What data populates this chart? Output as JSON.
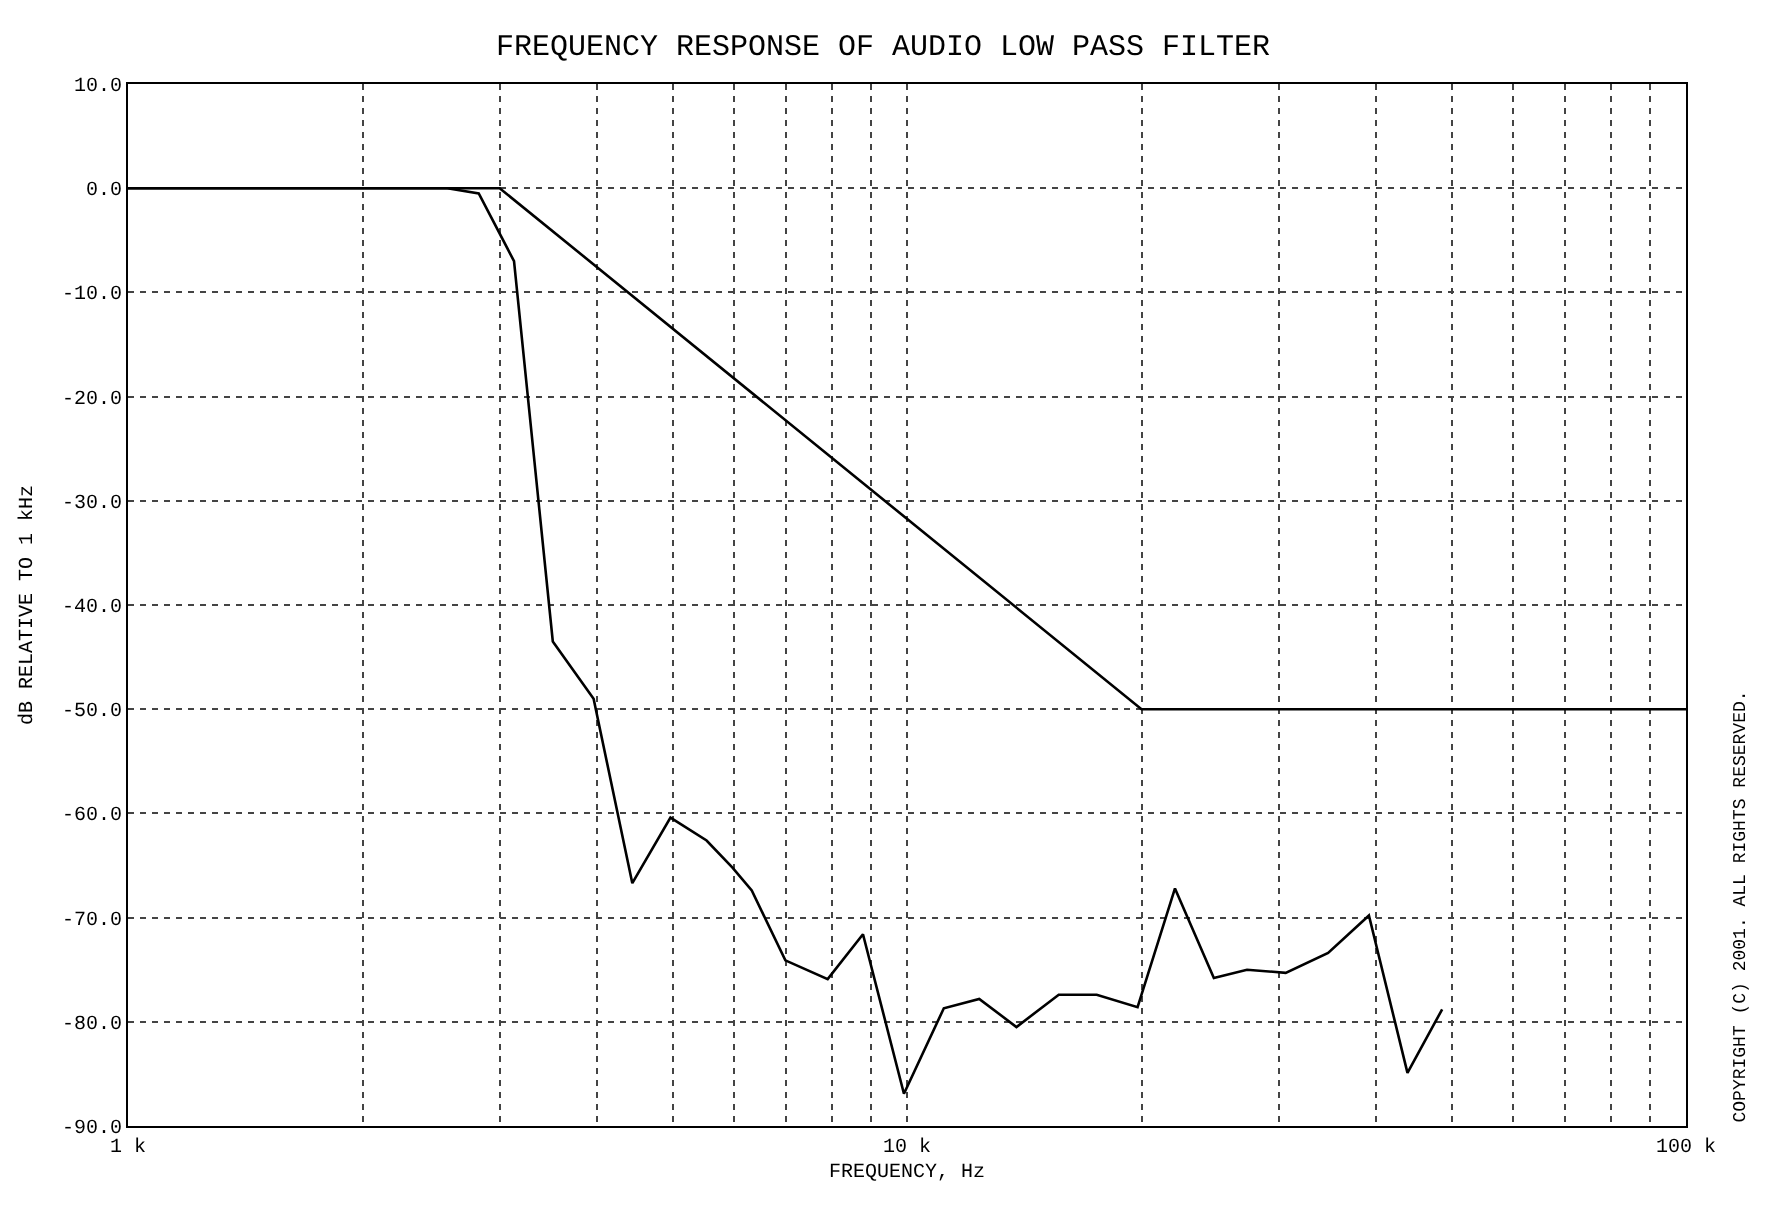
{
  "chart_data": {
    "type": "line",
    "title": "FREQUENCY RESPONSE OF AUDIO LOW PASS FILTER",
    "xlabel": "FREQUENCY, Hz",
    "ylabel": "dB RELATIVE TO 1 kHz",
    "annotations": [
      "COPYRIGHT (C) 2001. ALL RIGHTS RESERVED."
    ],
    "log": "x",
    "grid": true,
    "line_style": "solid",
    "marker": "none",
    "xlim": [
      1000,
      100000
    ],
    "xticks": [
      {
        "value": 1000,
        "label": "1 k"
      },
      {
        "value": 2000,
        "label": null
      },
      {
        "value": 3000,
        "label": null
      },
      {
        "value": 4000,
        "label": null
      },
      {
        "value": 5000,
        "label": null
      },
      {
        "value": 6000,
        "label": null
      },
      {
        "value": 7000,
        "label": null
      },
      {
        "value": 8000,
        "label": null
      },
      {
        "value": 9000,
        "label": null
      },
      {
        "value": 10000,
        "label": "10 k"
      },
      {
        "value": 20000,
        "label": null
      },
      {
        "value": 30000,
        "label": null
      },
      {
        "value": 40000,
        "label": null
      },
      {
        "value": 50000,
        "label": null
      },
      {
        "value": 60000,
        "label": null
      },
      {
        "value": 70000,
        "label": null
      },
      {
        "value": 80000,
        "label": null
      },
      {
        "value": 90000,
        "label": null
      },
      {
        "value": 100000,
        "label": "100 k"
      }
    ],
    "ylim": [
      -90,
      10
    ],
    "yticks": [
      {
        "value": 10,
        "label": "10.0"
      },
      {
        "value": 0,
        "label": "0.0"
      },
      {
        "value": -10,
        "label": "-10.0"
      },
      {
        "value": -20,
        "label": "-20.0"
      },
      {
        "value": -30,
        "label": "-30.0"
      },
      {
        "value": -40,
        "label": "-40.0"
      },
      {
        "value": -50,
        "label": "-50.0"
      },
      {
        "value": -60,
        "label": "-60.0"
      },
      {
        "value": -70,
        "label": "-70.0"
      },
      {
        "value": -80,
        "label": "-80.0"
      },
      {
        "value": -90,
        "label": "-90.0"
      }
    ],
    "series": [
      {
        "color": "#000000",
        "x": [
          1000,
          2570,
          2820,
          3130,
          3510,
          3960,
          4440,
          4970,
          5530,
          5970,
          6320,
          6980,
          7910,
          8780,
          9910,
          11150,
          12380,
          13820,
          15660,
          17520,
          19770,
          22080,
          24770,
          27320,
          30630,
          34720,
          39170,
          43900,
          48640
        ],
        "values": [
          0,
          0,
          -0.5,
          -7,
          -43.5,
          -49,
          -66.7,
          -60.4,
          -62.6,
          -65.2,
          -67.4,
          -74.1,
          -75.9,
          -71.6,
          -86.9,
          -78.7,
          -77.8,
          -80.5,
          -77.4,
          -77.4,
          -78.6,
          -67.2,
          -75.8,
          -75,
          -75.3,
          -73.4,
          -69.8,
          -84.9,
          -78.8
        ]
      },
      {
        "color": "#000000",
        "x": [
          1000,
          3000,
          20000,
          100000
        ],
        "values": [
          0,
          0,
          -50,
          -50
        ]
      }
    ]
  }
}
